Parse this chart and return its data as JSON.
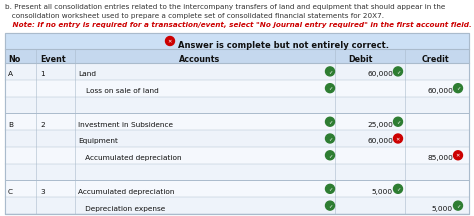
{
  "title_lines": [
    "b. Present all consolidation entries related to the intercompany transfers of land and equipment that should appear in the",
    "   consolidation worksheet used to prepare a complete set of consolidated financial statements for 20X7."
  ],
  "note_line": "   Note: If no entry is required for a transaction/event, select \"No journal entry required\" in the first account field.",
  "answer_banner": "Answer is complete but not entirely correct.",
  "rows": [
    {
      "no": "A",
      "event": "1",
      "account": "Land",
      "indent": false,
      "debit": "60,000",
      "credit": "",
      "debit_icon": "check",
      "credit_icon": "none",
      "account_icon": "check"
    },
    {
      "no": "",
      "event": "",
      "account": "Loss on sale of land",
      "indent": true,
      "debit": "",
      "credit": "60,000",
      "debit_icon": "none",
      "credit_icon": "check",
      "account_icon": "check"
    },
    {
      "no": "",
      "event": "",
      "account": "",
      "indent": false,
      "debit": "",
      "credit": "",
      "debit_icon": "none",
      "credit_icon": "none",
      "account_icon": "none"
    },
    {
      "no": "B",
      "event": "2",
      "account": "Investment in Subsidence",
      "indent": false,
      "debit": "25,000",
      "credit": "",
      "debit_icon": "check",
      "credit_icon": "none",
      "account_icon": "check"
    },
    {
      "no": "",
      "event": "",
      "account": "Equipment",
      "indent": false,
      "debit": "60,000",
      "credit": "",
      "debit_icon": "wrong",
      "credit_icon": "none",
      "account_icon": "check"
    },
    {
      "no": "",
      "event": "",
      "account": "   Accumulated depreciation",
      "indent": false,
      "debit": "",
      "credit": "85,000",
      "debit_icon": "none",
      "credit_icon": "wrong",
      "account_icon": "check"
    },
    {
      "no": "",
      "event": "",
      "account": "",
      "indent": false,
      "debit": "",
      "credit": "",
      "debit_icon": "none",
      "credit_icon": "none",
      "account_icon": "none"
    },
    {
      "no": "C",
      "event": "3",
      "account": "Accumulated depreciation",
      "indent": false,
      "debit": "5,000",
      "credit": "",
      "debit_icon": "check",
      "credit_icon": "none",
      "account_icon": "check"
    },
    {
      "no": "",
      "event": "",
      "account": "   Depreciation expense",
      "indent": false,
      "debit": "",
      "credit": "5,000",
      "debit_icon": "none",
      "credit_icon": "check",
      "account_icon": "check"
    }
  ],
  "title_color": "#333333",
  "note_color": "#cc0000",
  "banner_bg": "#cce0f5",
  "header_bg": "#c5d8ee",
  "table_bg": "#e8f0f8",
  "row_bg_even": "#eef3fa",
  "row_bg_odd": "#f5f8fd",
  "border_color": "#aabbcc",
  "text_color": "#111111",
  "check_color": "#2e7d32",
  "wrong_color": "#cc0000"
}
